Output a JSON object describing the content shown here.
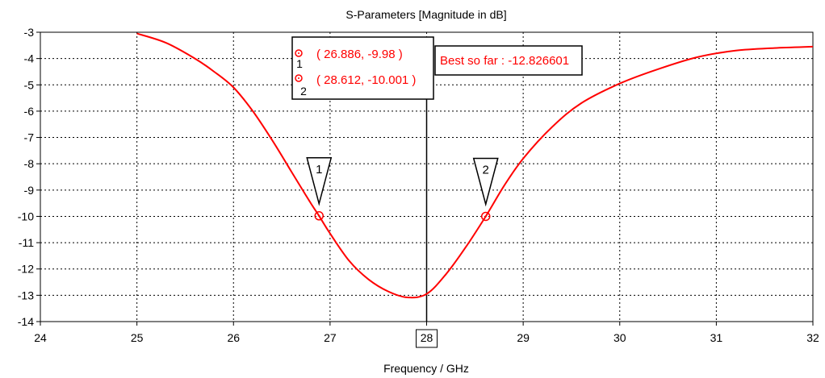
{
  "chart_data": {
    "type": "line",
    "title": "S-Parameters [Magnitude in dB]",
    "xlabel": "Frequency / GHz",
    "ylabel": "",
    "xlim": [
      24,
      32
    ],
    "ylim": [
      -14,
      -3
    ],
    "x_ticks": [
      24,
      25,
      26,
      27,
      28,
      29,
      30,
      31,
      32
    ],
    "y_ticks": [
      -3,
      -4,
      -5,
      -6,
      -7,
      -8,
      -9,
      -10,
      -11,
      -12,
      -13,
      -14
    ],
    "highlighted_x_tick": 28,
    "grid": true,
    "series": [
      {
        "color": "#ff0000",
        "x": [
          25.0,
          25.3,
          25.6,
          25.8,
          26.0,
          26.2,
          26.4,
          26.6,
          26.8,
          26.886,
          27.0,
          27.2,
          27.4,
          27.6,
          27.8,
          28.0,
          28.2,
          28.4,
          28.612,
          28.8,
          29.0,
          29.3,
          29.6,
          30.0,
          30.4,
          30.8,
          31.2,
          31.6,
          32.0
        ],
        "y": [
          -3.05,
          -3.4,
          -4.0,
          -4.5,
          -5.1,
          -6.0,
          -7.1,
          -8.3,
          -9.5,
          -9.98,
          -10.65,
          -11.7,
          -12.4,
          -12.85,
          -13.08,
          -12.95,
          -12.2,
          -11.2,
          -10.0,
          -8.85,
          -7.8,
          -6.6,
          -5.7,
          -4.95,
          -4.4,
          -3.95,
          -3.7,
          -3.6,
          -3.55
        ]
      }
    ],
    "markers": [
      {
        "id": "1",
        "x": 26.886,
        "y": -9.98,
        "readout": "( 26.886, -9.98 )"
      },
      {
        "id": "2",
        "x": 28.612,
        "y": -10.001,
        "readout": "( 28.612, -10.001 )"
      }
    ],
    "vertical_line_x": 28,
    "annotation": "Best so far : -12.826601"
  }
}
